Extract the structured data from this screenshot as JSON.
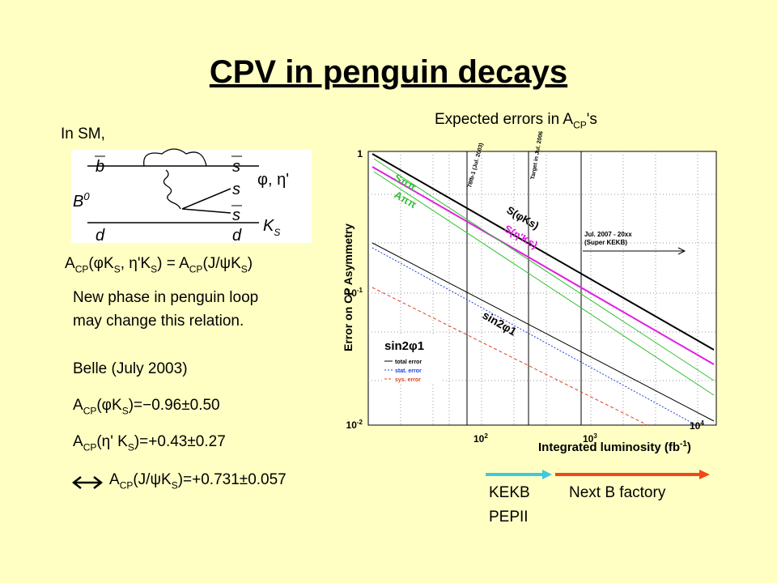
{
  "header": {
    "title": "CPV in penguin decays"
  },
  "left": {
    "intro": "In SM,",
    "diagram": {
      "quark_b": "b",
      "quark_s1": "s",
      "quark_s2": "s",
      "quark_s3": "s",
      "quark_d1": "d",
      "quark_d2": "d",
      "meson_b": "B",
      "meson_b_sup": "0",
      "final_phi": "φ, η'",
      "final_k": "K",
      "final_k_sub": "S"
    },
    "relation": [
      "A",
      "CP",
      "(φK",
      "S",
      ", η'K",
      "S",
      ") = A",
      "CP",
      "(J/ψK",
      "S",
      ")"
    ],
    "note": [
      "New phase in penguin loop",
      "may change this relation."
    ],
    "belle": "Belle (July 2003)",
    "results": [
      [
        "A",
        "CP",
        "(φK",
        "S",
        ")=−0.96±0.50"
      ],
      [
        "A",
        "CP",
        "(η' K",
        "S",
        ")=+0.43±0.27"
      ],
      [
        "A",
        "CP",
        "(J/ψK",
        "S",
        ")=+0.731±0.057"
      ]
    ]
  },
  "right": {
    "heading": [
      "Expected errors in A",
      "CP",
      "'s"
    ],
    "plot": {
      "y_label": "Error on CP Asymmetry",
      "x_label": [
        "Integrated luminosity (fb",
        "-1",
        ")"
      ],
      "y_ticks": [
        [
          "1"
        ],
        [
          "10",
          "-1"
        ],
        [
          "10",
          "-2"
        ]
      ],
      "x_ticks": [
        [
          "10",
          "2"
        ],
        [
          "10",
          "3"
        ],
        [
          "10",
          "4"
        ]
      ],
      "marker_now": "78fb-1 (Jul. 2003)",
      "marker_target": "Target in Jul. 2006",
      "super_kekb": [
        "Jul. 2007 - 20xx",
        "(Super KEKB)"
      ],
      "curves": {
        "s_phi": "S(φKs)",
        "s_eta": "S(η'Ks)",
        "sin2phi": "sin2φ1",
        "s_pipi": "Sππ",
        "a_pipi": "Aππ"
      },
      "legend": {
        "title": "sin2φ1",
        "total": "total error",
        "stat": "stat. error",
        "sys": "sys. error"
      }
    },
    "timeline": {
      "kekb": "KEKB",
      "pepii": "PEPII",
      "next": "Next B factory"
    }
  }
}
